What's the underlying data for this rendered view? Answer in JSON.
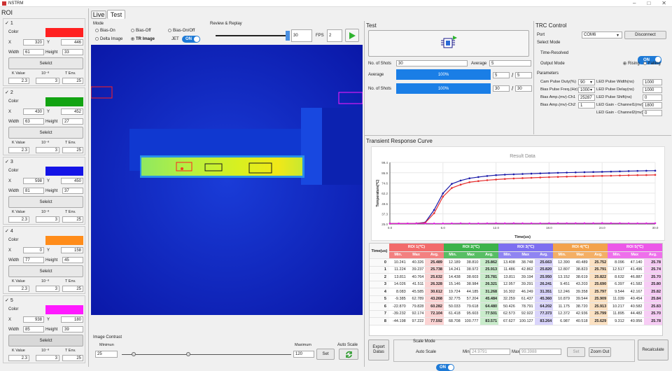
{
  "window": {
    "title": "NSTRM"
  },
  "tabs": [
    "Live",
    "Test"
  ],
  "roi": {
    "title": "ROI",
    "items": [
      {
        "num": "1",
        "color_label": "Color",
        "color": "#ff2020",
        "x": "320",
        "y": "446",
        "width": "61",
        "height": "33",
        "select": "Selelct",
        "k_label": "K Value",
        "exp_label": "10⁻⁸",
        "t_label": "T Env.",
        "k": "2.3",
        "exp": "3",
        "t": "25"
      },
      {
        "num": "2",
        "color_label": "Color",
        "color": "#12a312",
        "x": "430",
        "y": "452",
        "width": "63",
        "height": "27",
        "select": "Selelct",
        "k_label": "K Value",
        "exp_label": "10⁻⁸",
        "t_label": "T Env.",
        "k": "2.3",
        "exp": "3",
        "t": "25"
      },
      {
        "num": "3",
        "color_label": "Color",
        "color": "#1414e6",
        "x": "598",
        "y": "450",
        "width": "81",
        "height": "37",
        "select": "Selelct",
        "k_label": "K Value",
        "exp_label": "10⁻⁸",
        "t_label": "T Env.",
        "k": "2.3",
        "exp": "3",
        "t": "25"
      },
      {
        "num": "4",
        "color_label": "Color",
        "color": "#ff8c1a",
        "x": "0",
        "y": "158",
        "width": "77",
        "height": "45",
        "select": "Selelct",
        "k_label": "K Value",
        "exp_label": "10⁻⁸",
        "t_label": "T Env.",
        "k": "2.3",
        "exp": "3",
        "t": "25"
      },
      {
        "num": "5",
        "color_label": "Color",
        "color": "#ff1aff",
        "x": "938",
        "y": "180",
        "width": "85",
        "height": "39",
        "select": "Selelct",
        "k_label": "K Value",
        "exp_label": "10⁻⁸",
        "t_label": "T Env.",
        "k": "2.3",
        "exp": "3",
        "t": "25"
      }
    ],
    "x_label": "X",
    "y_label": "Y",
    "w_label": "Width",
    "h_label": "Height"
  },
  "mode": {
    "title": "Mode",
    "options": [
      "Bias-On",
      "Bias-Off",
      "Bias-On/Off",
      "Delta Image",
      "TR Image"
    ],
    "selected": "TR Image",
    "jet_label": "JET",
    "jet_state": "ON"
  },
  "review": {
    "title": "Review & Replay",
    "frame": "30",
    "fps_label": "FPS",
    "fps": "2"
  },
  "contrast": {
    "title": "Image Contrast",
    "min_label": "Minimun",
    "max_label": "Maximum",
    "min": "25",
    "max": "120",
    "set": "Set",
    "auto_label": "Auto Scale"
  },
  "test": {
    "title": "Test",
    "shots_label": "No. of Shots",
    "shots": "30",
    "avg_label": "Average",
    "avg": "5",
    "progress": [
      {
        "label": "Average",
        "pct": "100%",
        "cur": "5",
        "tot": "5",
        "fraction": 1.0
      },
      {
        "label": "No. of Shots",
        "pct": "100%",
        "cur": "30",
        "tot": "30",
        "fraction": 1.0
      }
    ]
  },
  "trc": {
    "title": "TRC Control",
    "port_label": "Port",
    "port": "COM6",
    "disconnect": "Disconnect",
    "select_mode": "Select Mode",
    "tr_label": "Time-Resolved",
    "tr_state": "ON",
    "output_label": "Output Mode",
    "rising": "Rising",
    "falling": "Falling",
    "params_title": "Parameters",
    "left": [
      {
        "label": "Cam Pulse Duty(%)",
        "value": "90"
      },
      {
        "label": "Bias Pulse Freq.(Hz)",
        "value": "1000"
      },
      {
        "label": "Bias Amp.(mv)-Ch1",
        "value": "25287"
      },
      {
        "label": "Bias Amp.(mv)-Ch2",
        "value": "1"
      }
    ],
    "right": [
      {
        "label": "LED Pulse Width(ns)",
        "value": "1000"
      },
      {
        "label": "LED Pulse Delay(ns)",
        "value": "1000"
      },
      {
        "label": "LED Pulse Shift(ns)",
        "value": "0"
      },
      {
        "label": "LED Gain - Channel1(mv)",
        "value": "1800"
      },
      {
        "label": "LED Gain - Channel2(mv)",
        "value": "0"
      }
    ]
  },
  "curve": {
    "title": "Transient Response Curve"
  },
  "chart_data": {
    "type": "line",
    "title": "Result Data",
    "xlabel": "Time(us)",
    "ylabel": "Temperature(℃)",
    "xticks": [
      "0.0",
      "6.0",
      "12.0",
      "18.0",
      "24.0",
      "30.0"
    ],
    "yticks": [
      "25.0",
      "37.3",
      "49.6",
      "62.2",
      "74.6",
      "86.9",
      "99.4"
    ],
    "xlim": [
      0,
      30
    ],
    "ylim": [
      25,
      99.4
    ],
    "series": [
      {
        "color": "#1a1aa8",
        "x": [
          0,
          1,
          2,
          3,
          4,
          5,
          6,
          7,
          8,
          9,
          10,
          11,
          12,
          13,
          14,
          15,
          16,
          17,
          18,
          19,
          20,
          21,
          22,
          23,
          24,
          25,
          26,
          27,
          28,
          29,
          30
        ],
        "values": [
          25.5,
          25.6,
          25.6,
          25.8,
          27,
          42,
          62,
          73.5,
          77.5,
          80.2,
          81.7,
          83,
          84,
          84.6,
          85,
          85.4,
          85.8,
          86.2,
          86.5,
          86.8,
          87.1,
          87.3,
          87.6,
          87.8,
          88,
          88.3,
          88.6,
          88.9,
          89.1,
          89.3,
          89.4
        ]
      },
      {
        "color": "#e63030",
        "x": [
          0,
          1,
          2,
          3,
          4,
          5,
          6,
          7,
          8,
          9,
          10,
          11,
          12,
          13,
          14,
          15,
          16,
          17,
          18,
          19,
          20,
          21,
          22,
          23,
          24,
          25,
          26,
          27,
          28,
          29,
          30
        ],
        "values": [
          25.5,
          25.6,
          25.6,
          25.8,
          26.5,
          38,
          58,
          68.5,
          72.5,
          75.5,
          76.8,
          77.9,
          78.7,
          79.4,
          80,
          80.4,
          80.8,
          81.2,
          81.6,
          81.9,
          82.2,
          82.5,
          82.7,
          82.9,
          83.1,
          83.3,
          83.6,
          83.8,
          84,
          84.1,
          84.3
        ]
      },
      {
        "color": "#e020e0",
        "x": [
          0,
          1,
          2,
          3,
          4,
          5,
          6,
          7,
          8,
          9,
          10,
          11,
          12,
          13,
          14,
          15,
          16,
          17,
          18,
          19,
          20,
          21,
          22,
          23,
          24,
          25,
          26,
          27,
          28,
          29,
          30
        ],
        "values": [
          25.6,
          25.6,
          25.6,
          25.7,
          25.7,
          25.6,
          25.6,
          25.7,
          25.8,
          25.7,
          25.7,
          25.8,
          25.9,
          25.8,
          25.9,
          25.8,
          25.8,
          25.8,
          25.9,
          25.9,
          25.9,
          25.9,
          25.9,
          25.9,
          26,
          25.9,
          25.9,
          25.8,
          25.8,
          25.8,
          25.9
        ]
      }
    ]
  },
  "table": {
    "time_label": "Time(us)",
    "groups": [
      {
        "name": "ROI 1(℃)",
        "bg": "#f26b6b",
        "sub": "#fbd3d3"
      },
      {
        "name": "ROI 2(℃)",
        "bg": "#3cb34a",
        "sub": "#c9eccb"
      },
      {
        "name": "ROI 3(℃)",
        "bg": "#7d6ff0",
        "sub": "#d9d4fb"
      },
      {
        "name": "ROI 4(℃)",
        "bg": "#f3a24b",
        "sub": "#fbe1c2"
      },
      {
        "name": "ROI 5(℃)",
        "bg": "#ec58e8",
        "sub": "#f7ccf5"
      }
    ],
    "sub": [
      "Min.",
      "Max",
      "Avg."
    ],
    "rows": [
      [
        "0",
        "10.241",
        "40.326",
        "25.489",
        "12.189",
        "38.810",
        "25.862",
        "13.408",
        "38.748",
        "25.663",
        "12.390",
        "40.489",
        "25.752",
        "8.096",
        "47.140",
        "25.78"
      ],
      [
        "1",
        "11.224",
        "39.237",
        "25.738",
        "14.241",
        "38.972",
        "25.913",
        "11.486",
        "42.862",
        "25.820",
        "12.807",
        "38.823",
        "25.791",
        "12.517",
        "41.496",
        "25.74"
      ],
      [
        "2",
        "13.811",
        "40.764",
        "25.632",
        "14.438",
        "38.603",
        "25.781",
        "13.811",
        "39.194",
        "25.950",
        "13.152",
        "38.619",
        "25.822",
        "8.632",
        "46.887",
        "25.70"
      ],
      [
        "3",
        "14.026",
        "41.511",
        "26.328",
        "15.146",
        "38.984",
        "26.321",
        "12.957",
        "39.291",
        "26.241",
        "9.451",
        "43.203",
        "25.690",
        "6.397",
        "41.582",
        "25.80"
      ],
      [
        "4",
        "8.083",
        "45.585",
        "30.612",
        "19.724",
        "44.185",
        "31.268",
        "16.302",
        "46.249",
        "31.351",
        "12.246",
        "39.358",
        "25.797",
        "9.544",
        "42.167",
        "25.82"
      ],
      [
        "5",
        "-9.385",
        "62.789",
        "43.268",
        "32.775",
        "57.204",
        "45.484",
        "32.259",
        "61.437",
        "45.360",
        "10.879",
        "39.544",
        "25.909",
        "11.039",
        "40.454",
        "25.84"
      ],
      [
        "6",
        "-22.870",
        "79.828",
        "60.282",
        "50.033",
        "79.618",
        "64.480",
        "50.426",
        "78.791",
        "64.202",
        "11.175",
        "38.720",
        "25.913",
        "10.217",
        "40.582",
        "25.83"
      ],
      [
        "7",
        "-39.232",
        "92.174",
        "72.104",
        "61.418",
        "95.603",
        "77.501",
        "62.573",
        "92.922",
        "77.373",
        "12.372",
        "42.936",
        "25.799",
        "11.895",
        "44.482",
        "25.70"
      ],
      [
        "8",
        "-44.198",
        "97.222",
        "77.592",
        "68.708",
        "100.777",
        "83.571",
        "67.627",
        "100.127",
        "83.264",
        "6.987",
        "40.518",
        "25.629",
        "9.312",
        "40.956",
        "25.78"
      ]
    ]
  },
  "bottom": {
    "export": "Export\nDatas",
    "scale_title": "Scale Mode",
    "auto_scale": "Auto Scale",
    "auto_state": "ON",
    "min_label": "Min",
    "min": "24.9791",
    "max_label": "Max",
    "max": "99.3988",
    "set": "Set",
    "zoom_out": "Zoom Out",
    "recalc": "Recalculate"
  }
}
